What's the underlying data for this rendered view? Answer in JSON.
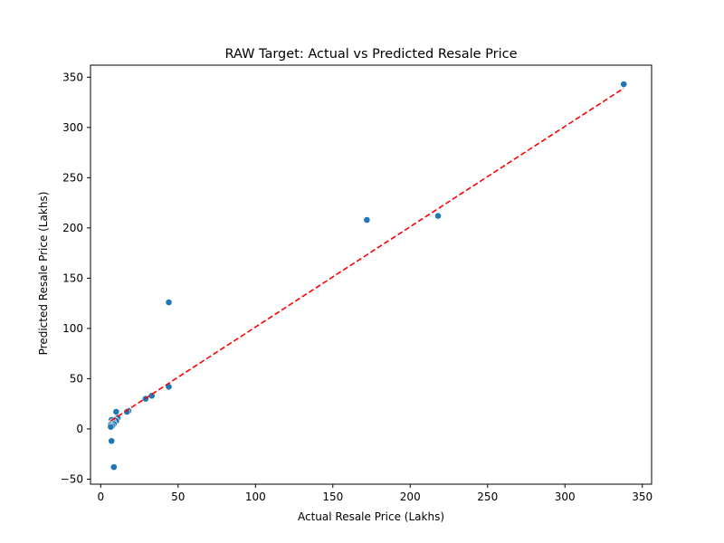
{
  "chart_data": {
    "type": "scatter",
    "title": "RAW Target: Actual vs Predicted Resale Price",
    "xlabel": "Actual Resale Price (Lakhs)",
    "ylabel": "Predicted Resale Price (Lakhs)",
    "xlim": [
      -6.6,
      356
    ],
    "ylim": [
      -55,
      362
    ],
    "xticks": [
      0,
      50,
      100,
      150,
      200,
      250,
      300,
      350
    ],
    "yticks": [
      -50,
      0,
      50,
      100,
      150,
      200,
      250,
      300,
      350
    ],
    "grid": false,
    "marker_color": "#1f77b4",
    "reference_line": {
      "style": "dashed",
      "color": "#ff0000",
      "from": [
        6.5,
        8
      ],
      "to": [
        338,
        339
      ]
    },
    "points": [
      {
        "x": 338,
        "y": 343
      },
      {
        "x": 218,
        "y": 212
      },
      {
        "x": 172,
        "y": 208
      },
      {
        "x": 44,
        "y": 126
      },
      {
        "x": 44,
        "y": 42
      },
      {
        "x": 33,
        "y": 33
      },
      {
        "x": 29,
        "y": 30
      },
      {
        "x": 18,
        "y": 18
      },
      {
        "x": 17,
        "y": 17
      },
      {
        "x": 10,
        "y": 17
      },
      {
        "x": 11,
        "y": 11
      },
      {
        "x": 9,
        "y": 9
      },
      {
        "x": 10,
        "y": 8
      },
      {
        "x": 7,
        "y": 9
      },
      {
        "x": 8,
        "y": 7
      },
      {
        "x": 7,
        "y": 6
      },
      {
        "x": 6.5,
        "y": 5
      },
      {
        "x": 8.5,
        "y": 5
      },
      {
        "x": 6.5,
        "y": 4
      },
      {
        "x": 7.5,
        "y": 3
      },
      {
        "x": 6.5,
        "y": 2
      },
      {
        "x": 7,
        "y": -12
      },
      {
        "x": 8.5,
        "y": -38
      }
    ]
  }
}
